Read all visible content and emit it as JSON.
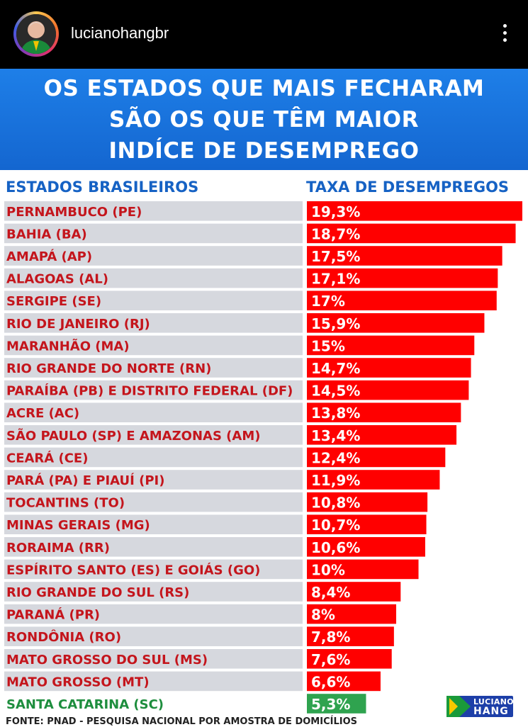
{
  "post": {
    "username": "lucianohangbr"
  },
  "headline": {
    "line1": "OS ESTADOS QUE MAIS FECHARAM",
    "line2": "SÃO OS QUE TÊM MAIOR",
    "line3": "INDÍCE DE DESEMPREGO"
  },
  "colors": {
    "bar": "#ff0000",
    "highlight_bar": "#2fa34f",
    "label_red": "#c4151c",
    "label_green": "#1e8e3e",
    "row_gray": "#d6d8de",
    "header_blue": "#1662c4"
  },
  "chart_data": {
    "type": "bar",
    "orientation": "horizontal",
    "col_state": "ESTADOS BRASILEIROS",
    "col_rate": "TAXA DE DESEMPREGOS",
    "categories": [
      "PERNAMBUCO (PE)",
      "BAHIA (BA)",
      "AMAPÁ (AP)",
      "ALAGOAS (AL)",
      "SERGIPE (SE)",
      "RIO DE JANEIRO (RJ)",
      "MARANHÃO (MA)",
      "RIO GRANDE DO NORTE (RN)",
      "PARAÍBA  (PB) E DISTRITO FEDERAL (DF)",
      "ACRE (AC)",
      "SÃO PAULO (SP) E AMAZONAS (AM)",
      "CEARÁ (CE)",
      "PARÁ (PA) E PIAUÍ (PI)",
      "TOCANTINS (TO)",
      "MINAS GERAIS (MG)",
      "RORAIMA (RR)",
      "ESPÍRITO SANTO (ES) E GOIÁS (GO)",
      "RIO GRANDE DO SUL (RS)",
      "PARANÁ (PR)",
      "RONDÔNIA (RO)",
      "MATO GROSSO DO SUL (MS)",
      "MATO GROSSO (MT)",
      "SANTA CATARINA (SC)"
    ],
    "values": [
      19.3,
      18.7,
      17.5,
      17.1,
      17,
      15.9,
      15,
      14.7,
      14.5,
      13.8,
      13.4,
      12.4,
      11.9,
      10.8,
      10.7,
      10.6,
      10,
      8.4,
      8,
      7.8,
      7.6,
      6.6,
      5.3
    ],
    "labels": [
      "19,3%",
      "18,7%",
      "17,5%",
      "17,1%",
      "17%",
      "15,9%",
      "15%",
      "14,7%",
      "14,5%",
      "13,8%",
      "13,4%",
      "12,4%",
      "11,9%",
      "10,8%",
      "10,7%",
      "10,6%",
      "10%",
      "8,4%",
      "8%",
      "7,8%",
      "7,6%",
      "6,6%",
      "5,3%"
    ],
    "highlight": "SANTA CATARINA (SC)",
    "xlim": [
      0,
      19.3
    ]
  },
  "footer": {
    "source": "FONTE: PNAD - PESQUISA NACIONAL POR AMOSTRA DE DOMICÍLIOS",
    "logo_line1": "LUCIANO",
    "logo_line2": "HANG"
  }
}
